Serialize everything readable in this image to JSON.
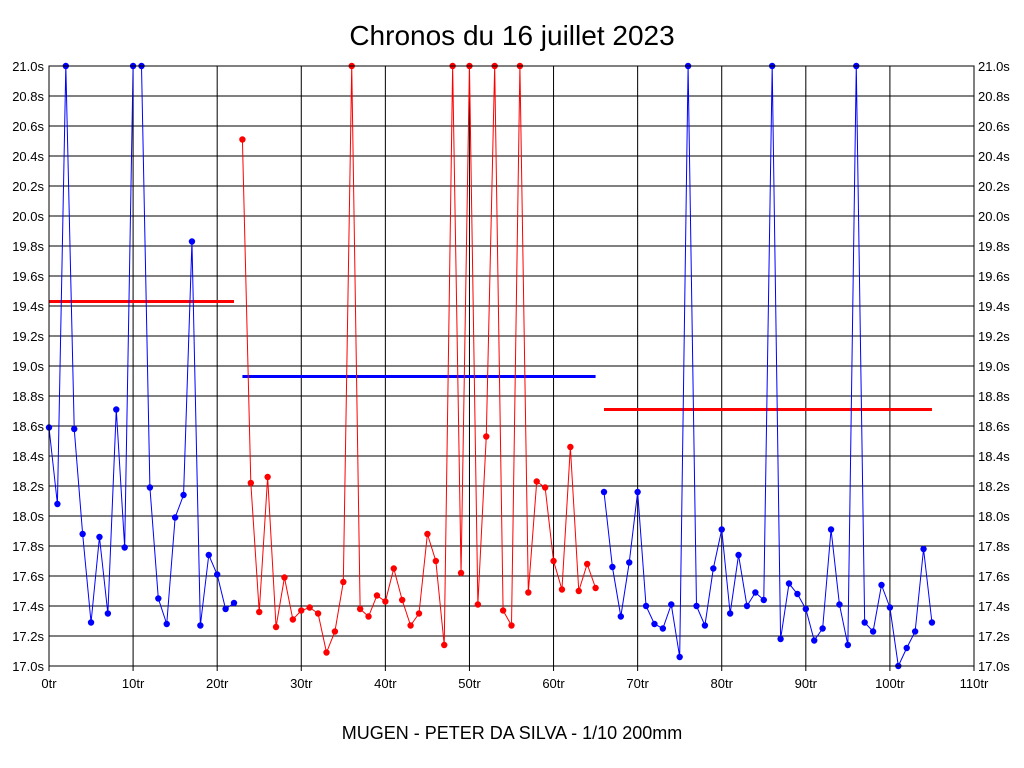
{
  "chart_data": {
    "type": "line",
    "title": "Chronos du 16 juillet 2023",
    "footer": "MUGEN - PETER DA SILVA - 1/10 200mm",
    "xlabel": "",
    "ylabel": "",
    "xlim": [
      0,
      110
    ],
    "ylim": [
      17.0,
      21.0
    ],
    "grid": true,
    "x_ticks": [
      0,
      10,
      20,
      30,
      40,
      50,
      60,
      70,
      80,
      90,
      100,
      110
    ],
    "x_tick_labels": [
      "0tr",
      "10tr",
      "20tr",
      "30tr",
      "40tr",
      "50tr",
      "60tr",
      "70tr",
      "80tr",
      "90tr",
      "100tr",
      "110tr"
    ],
    "y_ticks": [
      17.0,
      17.2,
      17.4,
      17.6,
      17.8,
      18.0,
      18.2,
      18.4,
      18.6,
      18.8,
      19.0,
      19.2,
      19.4,
      19.6,
      19.8,
      20.0,
      20.2,
      20.4,
      20.6,
      20.8,
      21.0
    ],
    "y_tick_labels": [
      "17.0s",
      "17.2s",
      "17.4s",
      "17.6s",
      "17.8s",
      "18.0s",
      "18.2s",
      "18.4s",
      "18.6s",
      "18.8s",
      "19.0s",
      "19.2s",
      "19.4s",
      "19.6s",
      "19.8s",
      "20.0s",
      "20.2s",
      "20.4s",
      "20.6s",
      "20.8s",
      "21.0s"
    ],
    "series": [
      {
        "color": "#0000ff",
        "x": [
          0,
          1,
          2,
          3,
          4,
          5,
          6,
          7,
          8,
          9,
          10,
          11,
          12,
          13,
          14,
          15,
          16,
          17,
          18,
          19,
          20,
          21,
          22
        ],
        "values": [
          18.59,
          18.08,
          21.0,
          18.58,
          17.88,
          17.29,
          17.86,
          17.35,
          18.71,
          17.79,
          21.0,
          21.0,
          18.19,
          17.45,
          17.28,
          17.99,
          18.14,
          19.83,
          17.27,
          17.74,
          17.61,
          17.38,
          17.42
        ]
      },
      {
        "color": "#ff0000",
        "x": [
          23,
          24,
          25,
          26,
          27,
          28,
          29,
          30,
          31,
          32,
          33,
          34,
          35,
          36,
          37,
          38,
          39,
          40,
          41,
          42,
          43,
          44,
          45,
          46,
          47,
          48,
          49,
          50,
          51,
          52,
          53,
          54,
          55,
          56,
          57,
          58,
          59,
          60,
          61,
          62,
          63,
          64,
          65
        ],
        "values": [
          20.51,
          18.22,
          17.36,
          18.26,
          17.26,
          17.59,
          17.31,
          17.37,
          17.39,
          17.35,
          17.09,
          17.23,
          17.56,
          21.0,
          17.38,
          17.33,
          17.47,
          17.43,
          17.65,
          17.44,
          17.27,
          17.35,
          17.88,
          17.7,
          17.14,
          21.0,
          17.62,
          21.0,
          17.41,
          18.53,
          21.0,
          17.37,
          17.27,
          21.0,
          17.49,
          18.23,
          18.19,
          17.7,
          17.51,
          18.46,
          17.5,
          17.68,
          17.52
        ]
      },
      {
        "color": "#0000ff",
        "x": [
          66,
          67,
          68,
          69,
          70,
          71,
          72,
          73,
          74,
          75,
          76,
          77,
          78,
          79,
          80,
          81,
          82,
          83,
          84,
          85,
          86,
          87,
          88,
          89,
          90,
          91,
          92,
          93,
          94,
          95,
          96,
          97,
          98,
          99,
          100,
          101,
          102,
          103,
          104,
          105
        ],
        "values": [
          18.16,
          17.66,
          17.33,
          17.69,
          18.16,
          17.4,
          17.28,
          17.25,
          17.41,
          17.06,
          21.0,
          17.4,
          17.27,
          17.65,
          17.91,
          17.35,
          17.74,
          17.4,
          17.49,
          17.44,
          21.0,
          17.18,
          17.55,
          17.48,
          17.38,
          17.17,
          17.25,
          17.91,
          17.41,
          17.14,
          21.0,
          17.29,
          17.23,
          17.54,
          17.39,
          17.0,
          17.12,
          17.23,
          17.78,
          17.29
        ]
      }
    ],
    "average_lines": [
      {
        "color": "#ff0000",
        "x_start": 0,
        "x_end": 22,
        "value": 19.43
      },
      {
        "color": "#0000ff",
        "x_start": 23,
        "x_end": 65,
        "value": 18.93
      },
      {
        "color": "#ff0000",
        "x_start": 66,
        "x_end": 105,
        "value": 18.71
      }
    ]
  }
}
